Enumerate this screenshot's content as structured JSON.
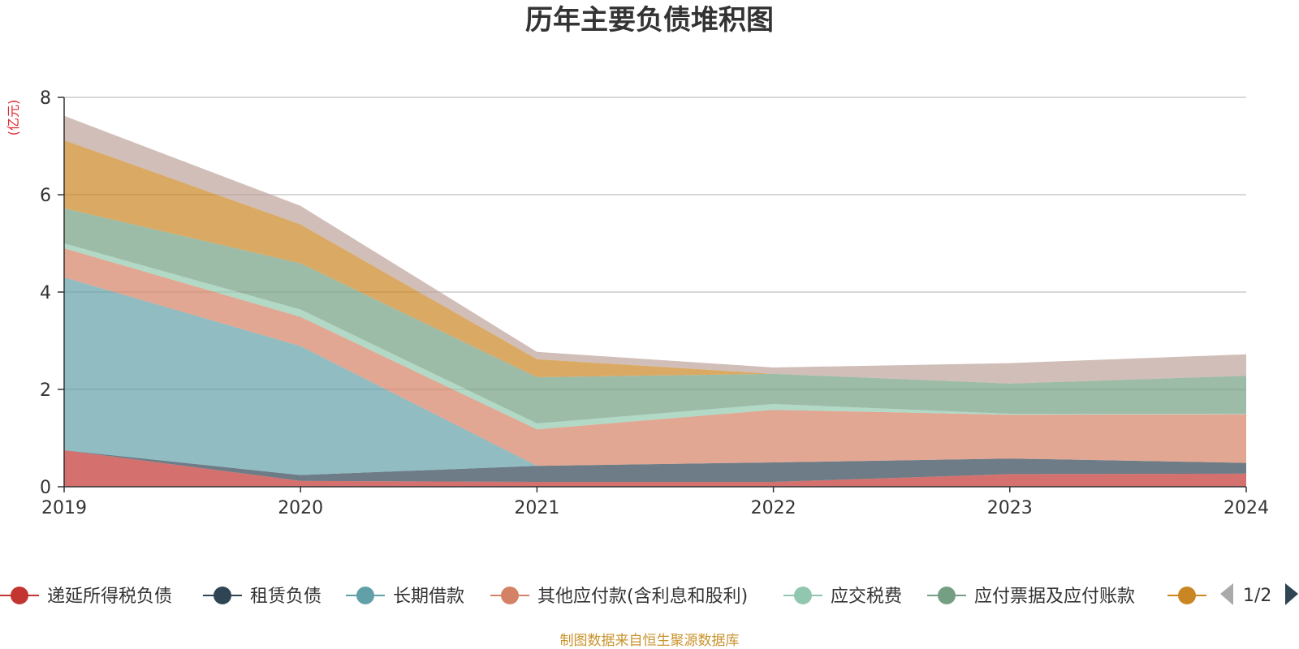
{
  "chart_data": {
    "type": "area",
    "stacked": true,
    "title": "历年主要负债堆积图",
    "unit_label": "(亿元)",
    "x": [
      "2019",
      "2020",
      "2021",
      "2022",
      "2023",
      "2024"
    ],
    "ylim": [
      0,
      8
    ],
    "yticks": [
      "0",
      "2",
      "4",
      "6",
      "8"
    ],
    "grid": true,
    "legend_position": "bottom",
    "series": [
      {
        "name": "递延所得税负债",
        "color": "#c23531",
        "values": [
          0.75,
          0.12,
          0.1,
          0.1,
          0.26,
          0.27
        ]
      },
      {
        "name": "租赁负债",
        "color": "#2f4554",
        "values": [
          0.0,
          0.12,
          0.33,
          0.4,
          0.32,
          0.22
        ]
      },
      {
        "name": "长期借款",
        "color": "#61a0a8",
        "values": [
          3.55,
          2.65,
          0.0,
          0.0,
          0.0,
          0.0
        ]
      },
      {
        "name": "其他应付款(含利息和股利)",
        "color": "#d48265",
        "values": [
          0.6,
          0.6,
          0.75,
          1.08,
          0.9,
          1.0
        ]
      },
      {
        "name": "应交税费",
        "color": "#91c7ae",
        "values": [
          0.1,
          0.15,
          0.12,
          0.12,
          0.02,
          0.01
        ]
      },
      {
        "name": "应付票据及应付账款",
        "color": "#749f83",
        "values": [
          0.72,
          0.95,
          0.95,
          0.62,
          0.62,
          0.78
        ]
      },
      {
        "name": "",
        "color": "#ca8622",
        "values": [
          1.4,
          0.8,
          0.37,
          0.0,
          0.0,
          0.0
        ]
      },
      {
        "name": "",
        "color": "#bda29a",
        "values": [
          0.5,
          0.38,
          0.15,
          0.13,
          0.42,
          0.44
        ]
      }
    ]
  },
  "legend": {
    "page_indicator": "1/2"
  },
  "source_note": "制图数据来自恒生聚源数据库"
}
